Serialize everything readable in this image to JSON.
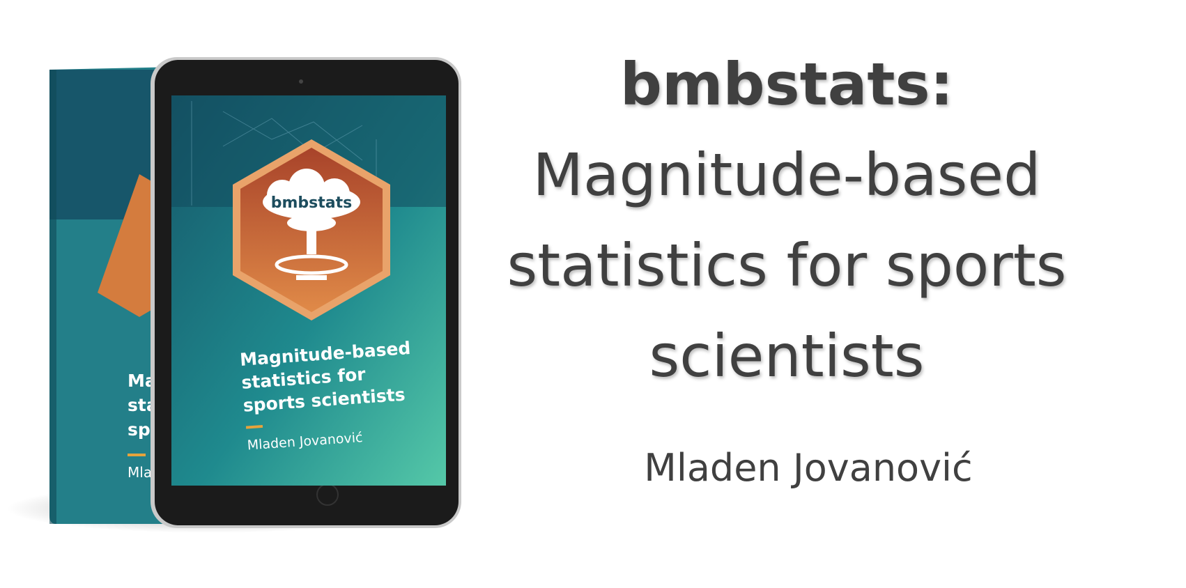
{
  "heading": {
    "title": "bmbstats:",
    "subtitle": [
      "Magnitude-based",
      "statistics for sports",
      "scientists"
    ],
    "author": "Mladen Jovanović"
  },
  "cover": {
    "logo": "bmbstats",
    "title": [
      "Magnitude-based",
      "statistics for",
      "sports scientists"
    ],
    "author": "Mladen Jovanović"
  }
}
